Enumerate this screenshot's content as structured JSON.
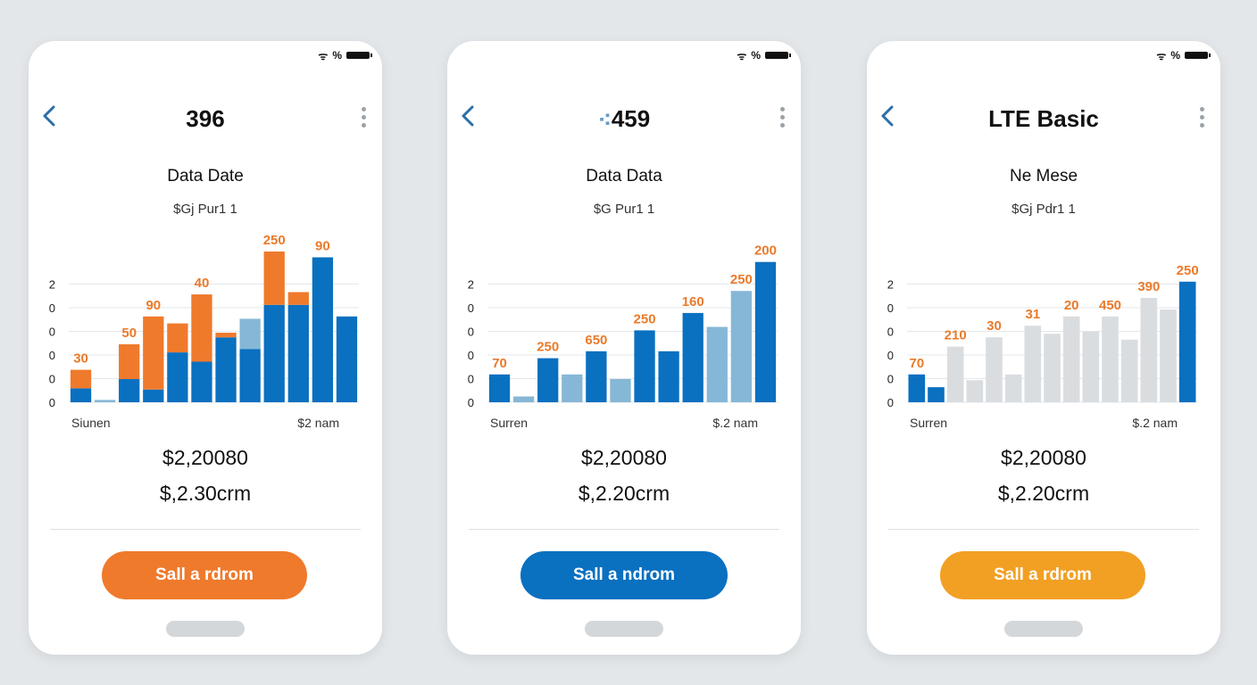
{
  "colors": {
    "orange": "#ef7a2c",
    "blue": "#0a70c0",
    "lightblue": "#86b7d6",
    "grey": "#dadde0",
    "amber": "#f2a024"
  },
  "icons": {
    "back": "chevron-left-icon",
    "more": "kebab-menu-icon",
    "wifi": "wifi-icon",
    "battery": "battery-icon"
  },
  "phones": [
    {
      "status": {
        "wifi": "ᯤ",
        "text": "%"
      },
      "title": "396",
      "title_icon": "",
      "subtitle": "Data Date",
      "price_label": "$Gj Pur1 1",
      "total_primary": "$2,20080",
      "total_secondary": "$,2.30crm",
      "button_label": "Sall a rdrom",
      "button_color": "#ef7a2c"
    },
    {
      "status": {
        "wifi": "ᯤ",
        "text": "%"
      },
      "title": "459",
      "title_icon": "⁖",
      "subtitle": "Data Data",
      "price_label": "$G Pur1 1",
      "total_primary": "$2,20080",
      "total_secondary": "$,2.20crm",
      "button_label": "Sall a ndrom",
      "button_color": "#0a70c0"
    },
    {
      "status": {
        "wifi": "ᯤ",
        "text": "%"
      },
      "title": "LTE Basic",
      "title_icon": "",
      "subtitle": "Ne Mese",
      "price_label": "$Gj Pdr1 1",
      "total_primary": "$2,20080",
      "total_secondary": "$,2.20crm",
      "button_label": "Sall a rdrom",
      "button_color": "#f2a024"
    }
  ],
  "chart_data": [
    {
      "type": "bar",
      "y_tick_labels": [
        "0",
        "0",
        "0",
        "0",
        "0",
        "2"
      ],
      "x_start_label": "Siunen",
      "x_end_label": "$2 nam",
      "bars": [
        {
          "base": 0.6,
          "top": 0.8,
          "base_color": "blue",
          "top_color": "orange",
          "label": "30"
        },
        {
          "base": 0.1,
          "top": 0,
          "base_color": "lightblue",
          "top_color": "orange",
          "label": ""
        },
        {
          "base": 1.0,
          "top": 1.5,
          "base_color": "blue",
          "top_color": "orange",
          "label": "50"
        },
        {
          "base": 0.55,
          "top": 3.15,
          "base_color": "blue",
          "top_color": "orange",
          "label": "90"
        },
        {
          "base": 2.15,
          "top": 1.25,
          "base_color": "blue",
          "top_color": "orange",
          "label": ""
        },
        {
          "base": 1.75,
          "top": 2.9,
          "base_color": "blue",
          "top_color": "orange",
          "label": "40"
        },
        {
          "base": 2.8,
          "top": 0.2,
          "base_color": "blue",
          "top_color": "orange",
          "label": ""
        },
        {
          "base": 2.3,
          "top": 1.3,
          "base_color": "blue",
          "top_color": "lightblue",
          "label": ""
        },
        {
          "base": 4.2,
          "top": 2.3,
          "base_color": "blue",
          "top_color": "orange",
          "label": "250"
        },
        {
          "base": 4.2,
          "top": 0.55,
          "base_color": "blue",
          "top_color": "orange",
          "label": ""
        },
        {
          "base": 6.25,
          "top": 0,
          "base_color": "blue",
          "top_color": "orange",
          "label": "90"
        },
        {
          "base": 3.7,
          "top": 0,
          "base_color": "blue",
          "top_color": "orange",
          "label": ""
        }
      ]
    },
    {
      "type": "bar",
      "y_tick_labels": [
        "0",
        "0",
        "0",
        "0",
        "0",
        "2"
      ],
      "x_start_label": "Surren",
      "x_end_label": "$.2 nam",
      "bars": [
        {
          "base": 1.2,
          "base_color": "blue",
          "label": "70"
        },
        {
          "base": 0.25,
          "base_color": "lightblue",
          "label": ""
        },
        {
          "base": 1.9,
          "base_color": "blue",
          "label": "250"
        },
        {
          "base": 1.2,
          "base_color": "lightblue",
          "label": ""
        },
        {
          "base": 2.2,
          "base_color": "blue",
          "label": "650"
        },
        {
          "base": 1.0,
          "base_color": "lightblue",
          "label": ""
        },
        {
          "base": 3.1,
          "base_color": "blue",
          "label": "250"
        },
        {
          "base": 2.2,
          "base_color": "blue",
          "label": ""
        },
        {
          "base": 3.85,
          "base_color": "blue",
          "label": "160"
        },
        {
          "base": 3.25,
          "base_color": "lightblue",
          "label": ""
        },
        {
          "base": 4.8,
          "base_color": "lightblue",
          "label": "250"
        },
        {
          "base": 6.05,
          "base_color": "blue",
          "label": "200"
        }
      ]
    },
    {
      "type": "bar",
      "y_tick_labels": [
        "0",
        "0",
        "0",
        "0",
        "0",
        "2"
      ],
      "x_start_label": "Surren",
      "x_end_label": "$.2 nam",
      "bars": [
        {
          "base": 1.2,
          "base_color": "blue",
          "label": "70"
        },
        {
          "base": 0.65,
          "base_color": "blue",
          "label": ""
        },
        {
          "base": 2.4,
          "base_color": "grey",
          "label": "210"
        },
        {
          "base": 0.95,
          "base_color": "grey",
          "label": ""
        },
        {
          "base": 2.8,
          "base_color": "grey",
          "label": "30"
        },
        {
          "base": 1.2,
          "base_color": "grey",
          "label": ""
        },
        {
          "base": 3.3,
          "base_color": "grey",
          "label": "31"
        },
        {
          "base": 2.95,
          "base_color": "grey",
          "label": ""
        },
        {
          "base": 3.7,
          "base_color": "grey",
          "label": "20"
        },
        {
          "base": 3.05,
          "base_color": "grey",
          "label": ""
        },
        {
          "base": 3.7,
          "base_color": "grey",
          "label": "450"
        },
        {
          "base": 2.7,
          "base_color": "grey",
          "label": ""
        },
        {
          "base": 4.5,
          "base_color": "grey",
          "label": "390"
        },
        {
          "base": 4.0,
          "base_color": "grey",
          "label": ""
        },
        {
          "base": 5.2,
          "base_color": "blue",
          "label": "250"
        }
      ]
    }
  ]
}
